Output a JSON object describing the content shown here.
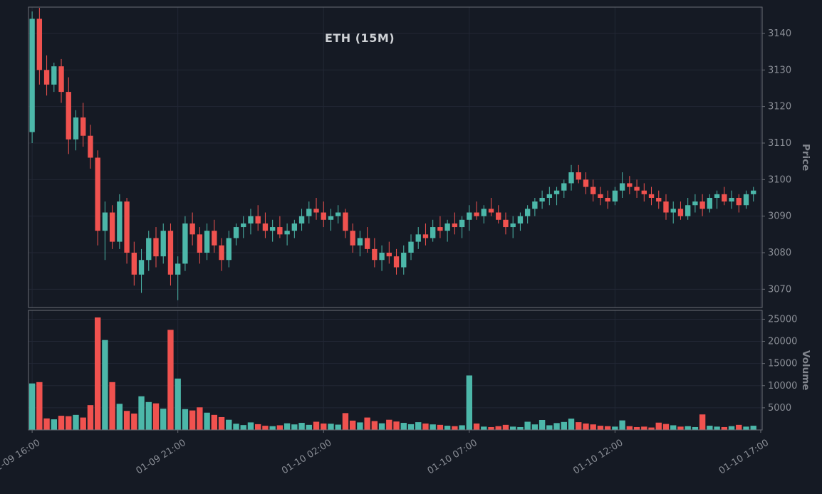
{
  "title": "ETH (15M)",
  "colors": {
    "background": "#151a24",
    "up": "#4cb7a9",
    "down": "#f0524f",
    "grid": "#222735",
    "spine": "#6a6e76",
    "tick_label": "#8a8e96",
    "axis_title": "#81858d",
    "title_color": "#cfd2d6"
  },
  "chart_data": {
    "type": "candlestick+volume",
    "symbol": "ETH",
    "interval": "15M",
    "title": "ETH (15M)",
    "start_time": "01-09 16:00",
    "interval_minutes": 15,
    "candle_format": [
      "open",
      "high",
      "low",
      "close"
    ],
    "x_tick_labels": [
      "01-09 16:00",
      "01-09 21:00",
      "01-10 02:00",
      "01-10 07:00",
      "01-10 12:00",
      "01-10 17:00"
    ],
    "x_tick_positions": [
      0,
      20,
      40,
      60,
      80,
      100
    ],
    "price_axis": {
      "label": "Price",
      "ticks": [
        3070,
        3080,
        3090,
        3100,
        3110,
        3120,
        3130,
        3140
      ],
      "range": [
        3065,
        3147.2
      ]
    },
    "volume_axis": {
      "label": "Volume",
      "ticks": [
        5000,
        10000,
        15000,
        20000,
        25000
      ],
      "range": [
        0,
        27000
      ]
    },
    "candles": [
      [
        3113,
        3146,
        3110,
        3144
      ],
      [
        3144,
        3147,
        3126,
        3130
      ],
      [
        3130,
        3134,
        3123,
        3126
      ],
      [
        3126,
        3132,
        3124,
        3131
      ],
      [
        3131,
        3133,
        3121,
        3124
      ],
      [
        3124,
        3128,
        3107,
        3111
      ],
      [
        3111,
        3119,
        3108,
        3117
      ],
      [
        3117,
        3121,
        3109,
        3112
      ],
      [
        3112,
        3115,
        3103,
        3106
      ],
      [
        3106,
        3108,
        3082,
        3086
      ],
      [
        3086,
        3094,
        3078,
        3091
      ],
      [
        3091,
        3093,
        3081,
        3083
      ],
      [
        3083,
        3096,
        3081,
        3094
      ],
      [
        3094,
        3095,
        3077,
        3080
      ],
      [
        3080,
        3083,
        3071,
        3074
      ],
      [
        3074,
        3081,
        3069,
        3078
      ],
      [
        3078,
        3086,
        3075,
        3084
      ],
      [
        3084,
        3087,
        3076,
        3079
      ],
      [
        3079,
        3088,
        3077,
        3086
      ],
      [
        3086,
        3088,
        3071,
        3074
      ],
      [
        3074,
        3079,
        3067,
        3077
      ],
      [
        3077,
        3090,
        3075,
        3088
      ],
      [
        3088,
        3091,
        3082,
        3085
      ],
      [
        3085,
        3087,
        3077,
        3080
      ],
      [
        3080,
        3088,
        3078,
        3086
      ],
      [
        3086,
        3089,
        3080,
        3082
      ],
      [
        3082,
        3084,
        3075,
        3078
      ],
      [
        3078,
        3086,
        3076,
        3084
      ],
      [
        3084,
        3088,
        3082,
        3087
      ],
      [
        3087,
        3090,
        3084,
        3088
      ],
      [
        3088,
        3092,
        3085,
        3090
      ],
      [
        3090,
        3093,
        3086,
        3088
      ],
      [
        3088,
        3091,
        3084,
        3086
      ],
      [
        3086,
        3089,
        3083,
        3087
      ],
      [
        3087,
        3090,
        3084,
        3085
      ],
      [
        3085,
        3088,
        3082,
        3086
      ],
      [
        3086,
        3089,
        3084,
        3088
      ],
      [
        3088,
        3092,
        3086,
        3090
      ],
      [
        3090,
        3094,
        3088,
        3092
      ],
      [
        3092,
        3095,
        3089,
        3091
      ],
      [
        3091,
        3094,
        3087,
        3089
      ],
      [
        3089,
        3092,
        3086,
        3090
      ],
      [
        3090,
        3093,
        3088,
        3091
      ],
      [
        3091,
        3092,
        3084,
        3086
      ],
      [
        3086,
        3088,
        3080,
        3082
      ],
      [
        3082,
        3086,
        3079,
        3084
      ],
      [
        3084,
        3087,
        3080,
        3081
      ],
      [
        3081,
        3084,
        3076,
        3078
      ],
      [
        3078,
        3082,
        3075,
        3080
      ],
      [
        3080,
        3083,
        3077,
        3079
      ],
      [
        3079,
        3081,
        3074,
        3076
      ],
      [
        3076,
        3082,
        3074,
        3080
      ],
      [
        3080,
        3085,
        3078,
        3083
      ],
      [
        3083,
        3087,
        3081,
        3085
      ],
      [
        3085,
        3088,
        3082,
        3084
      ],
      [
        3084,
        3089,
        3083,
        3087
      ],
      [
        3087,
        3090,
        3084,
        3086
      ],
      [
        3086,
        3089,
        3083,
        3088
      ],
      [
        3088,
        3091,
        3085,
        3087
      ],
      [
        3087,
        3090,
        3084,
        3089
      ],
      [
        3089,
        3093,
        3086,
        3091
      ],
      [
        3091,
        3094,
        3089,
        3090
      ],
      [
        3090,
        3093,
        3088,
        3092
      ],
      [
        3092,
        3095,
        3090,
        3091
      ],
      [
        3091,
        3093,
        3088,
        3089
      ],
      [
        3089,
        3091,
        3085,
        3087
      ],
      [
        3087,
        3090,
        3084,
        3088
      ],
      [
        3088,
        3091,
        3086,
        3090
      ],
      [
        3090,
        3093,
        3088,
        3092
      ],
      [
        3092,
        3095,
        3090,
        3094
      ],
      [
        3094,
        3097,
        3092,
        3095
      ],
      [
        3095,
        3098,
        3093,
        3096
      ],
      [
        3096,
        3098,
        3093,
        3097
      ],
      [
        3097,
        3100,
        3095,
        3099
      ],
      [
        3099,
        3104,
        3097,
        3102
      ],
      [
        3102,
        3104,
        3099,
        3100
      ],
      [
        3100,
        3102,
        3096,
        3098
      ],
      [
        3098,
        3100,
        3094,
        3096
      ],
      [
        3096,
        3098,
        3093,
        3095
      ],
      [
        3095,
        3097,
        3092,
        3094
      ],
      [
        3094,
        3098,
        3093,
        3097
      ],
      [
        3097,
        3102,
        3095,
        3099
      ],
      [
        3099,
        3101,
        3096,
        3098
      ],
      [
        3098,
        3100,
        3095,
        3097
      ],
      [
        3097,
        3099,
        3094,
        3096
      ],
      [
        3096,
        3098,
        3093,
        3095
      ],
      [
        3095,
        3097,
        3092,
        3094
      ],
      [
        3094,
        3096,
        3089,
        3091
      ],
      [
        3091,
        3094,
        3088,
        3092
      ],
      [
        3092,
        3094,
        3089,
        3090
      ],
      [
        3090,
        3095,
        3089,
        3093
      ],
      [
        3093,
        3096,
        3091,
        3094
      ],
      [
        3094,
        3096,
        3090,
        3092
      ],
      [
        3092,
        3096,
        3091,
        3095
      ],
      [
        3095,
        3097,
        3092,
        3096
      ],
      [
        3096,
        3098,
        3093,
        3094
      ],
      [
        3094,
        3097,
        3092,
        3095
      ],
      [
        3095,
        3096,
        3091,
        3093
      ],
      [
        3093,
        3097,
        3092,
        3096
      ],
      [
        3096,
        3098,
        3094,
        3097
      ]
    ],
    "volumes": [
      10500,
      10800,
      2600,
      2400,
      3200,
      3100,
      3400,
      2800,
      5600,
      25400,
      20300,
      10800,
      5900,
      4300,
      3700,
      7600,
      6300,
      6000,
      4800,
      22600,
      11600,
      4700,
      4400,
      5100,
      3900,
      3400,
      2900,
      2300,
      1400,
      1100,
      1700,
      1300,
      950,
      850,
      1050,
      1500,
      1250,
      1600,
      1150,
      1850,
      1450,
      1400,
      1200,
      3800,
      2100,
      1700,
      2800,
      2000,
      1500,
      2300,
      1900,
      1600,
      1300,
      1750,
      1450,
      1250,
      1150,
      950,
      850,
      1050,
      12300,
      1450,
      750,
      650,
      850,
      1150,
      750,
      650,
      1850,
      1250,
      2250,
      1050,
      1550,
      1800,
      2550,
      1750,
      1450,
      1250,
      950,
      850,
      750,
      2150,
      850,
      650,
      750,
      550,
      1650,
      1350,
      1050,
      750,
      850,
      650,
      3500,
      950,
      750,
      650,
      850,
      1150,
      750,
      950
    ]
  }
}
